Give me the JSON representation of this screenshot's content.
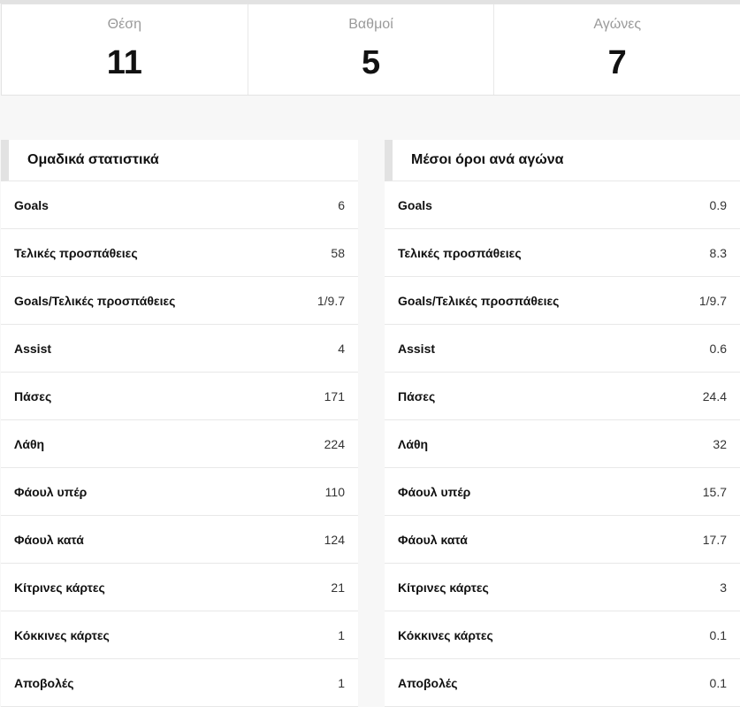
{
  "summary": {
    "position_label": "Θέση",
    "position_value": "11",
    "points_label": "Βαθμοί",
    "points_value": "5",
    "matches_label": "Αγώνες",
    "matches_value": "7"
  },
  "team_stats": {
    "title": "Ομαδικά στατιστικά",
    "rows": [
      {
        "name": "Goals",
        "value": "6"
      },
      {
        "name": "Τελικές προσπάθειες",
        "value": "58"
      },
      {
        "name": "Goals/Τελικές προσπάθειες",
        "value": "1/9.7"
      },
      {
        "name": "Assist",
        "value": "4"
      },
      {
        "name": "Πάσες",
        "value": "171"
      },
      {
        "name": "Λάθη",
        "value": "224"
      },
      {
        "name": "Φάουλ υπέρ",
        "value": "110"
      },
      {
        "name": "Φάουλ κατά",
        "value": "124"
      },
      {
        "name": "Κίτρινες κάρτες",
        "value": "21"
      },
      {
        "name": "Κόκκινες κάρτες",
        "value": "1"
      },
      {
        "name": "Αποβολές",
        "value": "1"
      }
    ]
  },
  "averages": {
    "title": "Μέσοι όροι ανά αγώνα",
    "rows": [
      {
        "name": "Goals",
        "value": "0.9"
      },
      {
        "name": "Τελικές προσπάθειες",
        "value": "8.3"
      },
      {
        "name": "Goals/Τελικές προσπάθειες",
        "value": "1/9.7"
      },
      {
        "name": "Assist",
        "value": "0.6"
      },
      {
        "name": "Πάσες",
        "value": "24.4"
      },
      {
        "name": "Λάθη",
        "value": "32"
      },
      {
        "name": "Φάουλ υπέρ",
        "value": "15.7"
      },
      {
        "name": "Φάουλ κατά",
        "value": "17.7"
      },
      {
        "name": "Κίτρινες κάρτες",
        "value": "3"
      },
      {
        "name": "Κόκκινες κάρτες",
        "value": "0.1"
      },
      {
        "name": "Αποβολές",
        "value": "0.1"
      }
    ]
  }
}
